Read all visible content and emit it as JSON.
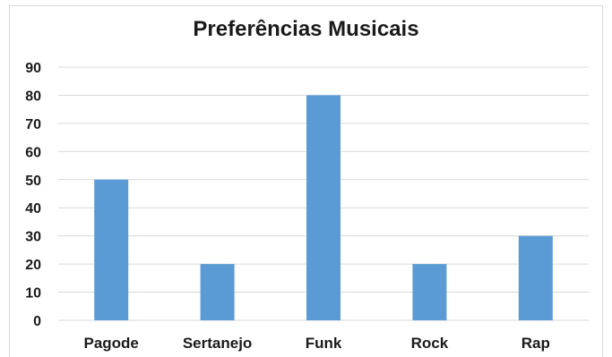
{
  "chart_data": {
    "type": "bar",
    "title": "Preferências Musicais",
    "categories": [
      "Pagode",
      "Sertanejo",
      "Funk",
      "Rock",
      "Rap"
    ],
    "values": [
      50,
      20,
      80,
      20,
      30
    ],
    "ylim": [
      0,
      90
    ],
    "yticks": [
      0,
      10,
      20,
      30,
      40,
      50,
      60,
      70,
      80,
      90
    ],
    "grid": true,
    "legend": "none",
    "bar_color": "#5b9bd5",
    "grid_color": "#d9d9d9"
  }
}
